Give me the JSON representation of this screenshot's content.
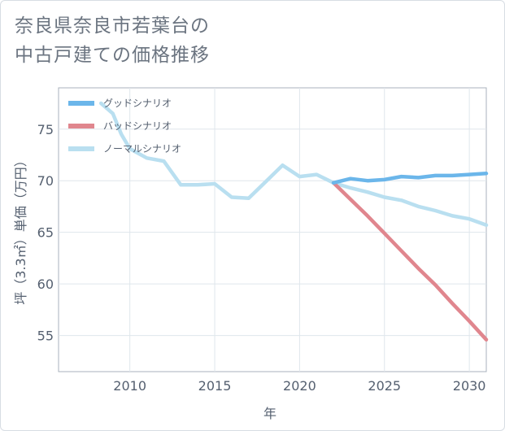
{
  "chart_data": {
    "type": "line",
    "title_line1": "奈良県奈良市若葉台の",
    "title_line2": "中古戸建ての価格推移",
    "xlabel": "年",
    "ylabel": "坪（3.3㎡）単価（万円）",
    "xlim": [
      2005.8,
      2031
    ],
    "ylim": [
      51.5,
      79
    ],
    "x_ticks": [
      2010,
      2015,
      2020,
      2025,
      2030
    ],
    "y_ticks": [
      55,
      60,
      65,
      70,
      75
    ],
    "legend_position": "top-left",
    "series": [
      {
        "name": "グッドシナリオ",
        "color": "#6bb6ea",
        "x": [
          2022,
          2023,
          2024,
          2025,
          2026,
          2027,
          2028,
          2029,
          2030,
          2031
        ],
        "y": [
          69.8,
          70.2,
          70.0,
          70.1,
          70.4,
          70.3,
          70.5,
          70.5,
          70.6,
          70.7
        ]
      },
      {
        "name": "バッドシナリオ",
        "color": "#e0868e",
        "x": [
          2022,
          2023,
          2024,
          2025,
          2026,
          2027,
          2028,
          2029,
          2030,
          2031
        ],
        "y": [
          69.8,
          68.2,
          66.6,
          64.9,
          63.2,
          61.5,
          59.9,
          58.1,
          56.4,
          54.6
        ]
      },
      {
        "name": "ノーマルシナリオ",
        "color": "#b9dff0",
        "x": [
          2008.3,
          2009,
          2009.5,
          2010,
          2011,
          2012,
          2013,
          2014,
          2015,
          2016,
          2017,
          2018,
          2019,
          2020,
          2021,
          2022,
          2023,
          2024,
          2025,
          2026,
          2027,
          2028,
          2029,
          2030,
          2031
        ],
        "y": [
          77.5,
          76.5,
          74.5,
          73.1,
          72.2,
          71.9,
          69.6,
          69.6,
          69.7,
          68.4,
          68.3,
          69.9,
          71.5,
          70.4,
          70.6,
          69.8,
          69.3,
          68.9,
          68.4,
          68.1,
          67.5,
          67.1,
          66.6,
          66.3,
          65.7
        ]
      }
    ]
  }
}
